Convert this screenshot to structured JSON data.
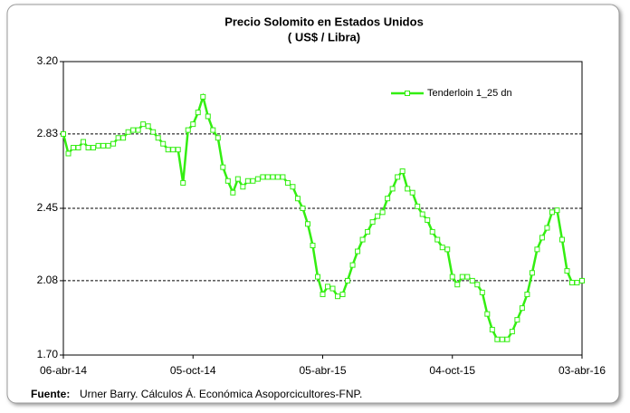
{
  "chart_data": {
    "type": "line",
    "title": "Precio Solomito en Estados Unidos",
    "subtitle": "( US$ / Libra)",
    "source": {
      "label": "Fuente:",
      "text": "Urner Barry. Cálculos Á. Económica Asoporcicultores-FNP."
    },
    "categories": [
      "06-abr-14",
      null,
      null,
      null,
      null,
      null,
      null,
      null,
      null,
      null,
      null,
      null,
      null,
      null,
      null,
      null,
      null,
      null,
      null,
      null,
      null,
      null,
      null,
      null,
      null,
      null,
      "05-oct-14",
      null,
      null,
      null,
      null,
      null,
      null,
      null,
      null,
      null,
      null,
      null,
      null,
      null,
      null,
      null,
      null,
      null,
      null,
      null,
      null,
      null,
      null,
      null,
      null,
      null,
      "05-abr-15",
      null,
      null,
      null,
      null,
      null,
      null,
      null,
      null,
      null,
      null,
      null,
      null,
      null,
      null,
      null,
      null,
      null,
      null,
      null,
      null,
      null,
      null,
      null,
      null,
      null,
      "04-oct-15",
      null,
      null,
      null,
      null,
      null,
      null,
      null,
      null,
      null,
      null,
      null,
      null,
      null,
      null,
      null,
      null,
      null,
      null,
      null,
      null,
      null,
      null,
      null,
      null,
      null,
      "03-abr-16"
    ],
    "series": [
      {
        "name": "Tenderloin 1_25 dn",
        "color": "#33ee11",
        "values": [
          2.83,
          2.73,
          2.76,
          2.76,
          2.79,
          2.76,
          2.76,
          2.77,
          2.77,
          2.77,
          2.78,
          2.81,
          2.81,
          2.84,
          2.85,
          2.85,
          2.88,
          2.87,
          2.84,
          2.81,
          2.78,
          2.75,
          2.75,
          2.75,
          2.58,
          2.85,
          2.88,
          2.94,
          3.02,
          2.92,
          2.85,
          2.81,
          2.66,
          2.59,
          2.53,
          2.6,
          2.56,
          2.59,
          2.59,
          2.6,
          2.61,
          2.61,
          2.61,
          2.61,
          2.61,
          2.58,
          2.56,
          2.5,
          2.45,
          2.37,
          2.26,
          2.1,
          2.01,
          2.05,
          2.04,
          2.0,
          2.01,
          2.08,
          2.16,
          2.23,
          2.29,
          2.33,
          2.38,
          2.41,
          2.43,
          2.5,
          2.55,
          2.61,
          2.64,
          2.55,
          2.53,
          2.46,
          2.42,
          2.39,
          2.33,
          2.29,
          2.25,
          2.24,
          2.1,
          2.06,
          2.1,
          2.1,
          2.08,
          2.06,
          2.02,
          1.91,
          1.83,
          1.78,
          1.78,
          1.78,
          1.82,
          1.88,
          1.94,
          2.01,
          2.12,
          2.24,
          2.3,
          2.35,
          2.43,
          2.44,
          2.29,
          2.13,
          2.07,
          2.07,
          2.08
        ]
      }
    ],
    "ylim": [
      1.7,
      3.2
    ],
    "yticks": [
      {
        "value": 1.7,
        "label": "1.70"
      },
      2.08,
      2.45,
      2.83,
      {
        "value": 3.2,
        "label": "3.20"
      }
    ],
    "grid": true,
    "legend": "upper right"
  }
}
